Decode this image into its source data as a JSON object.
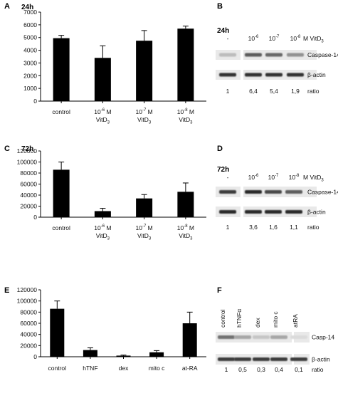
{
  "chart_data": [
    {
      "type": "bar",
      "panel": "A",
      "time": "24h",
      "categories": [
        {
          "line1": "control",
          "line2": ""
        },
        {
          "line1": "10-6 M",
          "line2": "VitD3"
        },
        {
          "line1": "10-7 M",
          "line2": "VitD3"
        },
        {
          "line1": "10-8 M",
          "line2": "VitD3"
        }
      ],
      "values": [
        4950,
        3400,
        4750,
        5700
      ],
      "errors": [
        220,
        950,
        800,
        200
      ],
      "ylim": [
        0,
        7000
      ],
      "yticks": [
        "0",
        "1000",
        "2000",
        "3000",
        "4000",
        "5000",
        "6000",
        "7000"
      ]
    },
    {
      "type": "bar",
      "panel": "C",
      "time": "72h",
      "categories": [
        {
          "line1": "control",
          "line2": ""
        },
        {
          "line1": "10-6 M",
          "line2": "VitD3"
        },
        {
          "line1": "10-7 M",
          "line2": "VitD3"
        },
        {
          "line1": "10-8 M",
          "line2": "VitD3"
        }
      ],
      "values": [
        86000,
        11000,
        34000,
        46000
      ],
      "errors": [
        14000,
        5000,
        7000,
        16000
      ],
      "ylim": [
        0,
        120000
      ],
      "yticks": [
        "0",
        "20000",
        "40000",
        "60000",
        "80000",
        "100000",
        "120000"
      ]
    },
    {
      "type": "bar",
      "panel": "E",
      "time": "",
      "categories": [
        {
          "line1": "control",
          "line2": ""
        },
        {
          "line1": "hTNF",
          "line2": ""
        },
        {
          "line1": "dex",
          "line2": ""
        },
        {
          "line1": "mito c",
          "line2": ""
        },
        {
          "line1": "at-RA",
          "line2": ""
        }
      ],
      "values": [
        86000,
        12000,
        2000,
        8000,
        60000
      ],
      "errors": [
        14000,
        4000,
        1000,
        3000,
        20000
      ],
      "ylim": [
        0,
        120000
      ],
      "yticks": [
        "0",
        "20000",
        "40000",
        "60000",
        "80000",
        "100000",
        "120000"
      ]
    }
  ],
  "blots": [
    {
      "panel": "B",
      "time": "24h",
      "lanes": [
        "-",
        "10-6",
        "10-7",
        "10-8"
      ],
      "unit": "M VitD3",
      "band_labels": [
        "Caspase-14",
        "β-actin"
      ],
      "ratios": [
        "1",
        "6,4",
        "5,4",
        "1,9"
      ],
      "ratio_label": "ratio"
    },
    {
      "panel": "D",
      "time": "72h",
      "lanes": [
        "-",
        "10-6",
        "10-7",
        "10-8"
      ],
      "unit": "M VitD3",
      "band_labels": [
        "Caspase-14",
        "β-actin"
      ],
      "ratios": [
        "1",
        "3,6",
        "1,6",
        "1,1"
      ],
      "ratio_label": "ratio"
    },
    {
      "panel": "F",
      "time": "",
      "lanes": [
        "control",
        "hTNFα",
        "dex",
        "mito c",
        "atRA"
      ],
      "unit": "",
      "band_labels": [
        "Casp-14",
        "β-actin"
      ],
      "ratios": [
        "1",
        "0,5",
        "0,3",
        "0,4",
        "0,1"
      ],
      "ratio_label": "ratio"
    }
  ]
}
